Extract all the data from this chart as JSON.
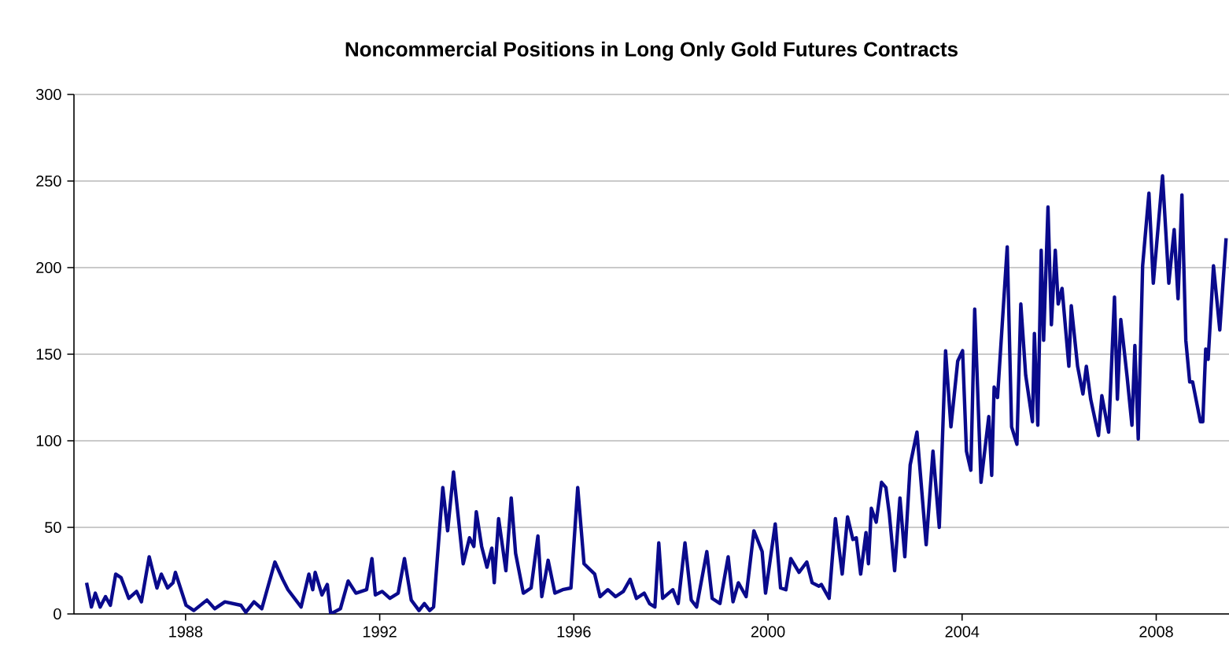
{
  "chart_data": {
    "type": "line",
    "title": "Noncommercial Positions in Long Only Gold Futures Contracts",
    "xlim": [
      1985.7,
      2009.5
    ],
    "xticks": [
      1988,
      1992,
      1996,
      2000,
      2004,
      2008
    ],
    "ylim": [
      0,
      300
    ],
    "yticks": [
      0,
      50,
      100,
      150,
      200,
      250,
      300
    ],
    "grid": "y",
    "marker": "none",
    "line_style": "solid",
    "series": [
      {
        "color": "#0a0a8c",
        "x": [
          1985.96,
          1986.06,
          1986.14,
          1986.24,
          1986.35,
          1986.45,
          1986.56,
          1986.67,
          1986.83,
          1986.99,
          1987.09,
          1987.25,
          1987.41,
          1987.5,
          1987.63,
          1987.74,
          1987.79,
          1988.01,
          1988.17,
          1988.44,
          1988.6,
          1988.81,
          1989.14,
          1989.24,
          1989.41,
          1989.57,
          1989.84,
          1990.0,
          1990.11,
          1990.38,
          1990.54,
          1990.62,
          1990.67,
          1990.81,
          1990.92,
          1990.99,
          1991.19,
          1991.35,
          1991.51,
          1991.73,
          1991.84,
          1991.91,
          1992.05,
          1992.21,
          1992.38,
          1992.51,
          1992.65,
          1992.81,
          1992.92,
          1993.03,
          1993.11,
          1993.3,
          1993.4,
          1993.52,
          1993.72,
          1993.85,
          1993.94,
          1993.99,
          1994.1,
          1994.21,
          1994.31,
          1994.36,
          1994.45,
          1994.6,
          1994.71,
          1994.8,
          1994.96,
          1995.12,
          1995.26,
          1995.34,
          1995.47,
          1995.61,
          1995.77,
          1995.94,
          1996.08,
          1996.21,
          1996.43,
          1996.54,
          1996.7,
          1996.86,
          1997.02,
          1997.16,
          1997.29,
          1997.45,
          1997.56,
          1997.67,
          1997.75,
          1997.83,
          1998.04,
          1998.15,
          1998.29,
          1998.42,
          1998.53,
          1998.74,
          1998.85,
          1999.01,
          1999.18,
          1999.28,
          1999.39,
          1999.55,
          1999.71,
          1999.88,
          1999.95,
          2000.15,
          2000.26,
          2000.37,
          2000.47,
          2000.64,
          2000.8,
          2000.91,
          2001.05,
          2001.1,
          2001.26,
          2001.39,
          2001.53,
          2001.64,
          2001.75,
          2001.82,
          2001.91,
          2002.02,
          2002.07,
          2002.13,
          2002.23,
          2002.34,
          2002.43,
          2002.5,
          2002.61,
          2002.72,
          2002.82,
          2002.93,
          2003.07,
          2003.26,
          2003.4,
          2003.53,
          2003.66,
          2003.77,
          2003.91,
          2004.01,
          2004.09,
          2004.18,
          2004.26,
          2004.39,
          2004.55,
          2004.61,
          2004.66,
          2004.73,
          2004.93,
          2005.02,
          2005.13,
          2005.21,
          2005.31,
          2005.45,
          2005.49,
          2005.56,
          2005.63,
          2005.68,
          2005.77,
          2005.84,
          2005.92,
          2005.98,
          2006.06,
          2006.2,
          2006.25,
          2006.38,
          2006.49,
          2006.56,
          2006.65,
          2006.81,
          2006.88,
          2007.02,
          2007.14,
          2007.2,
          2007.27,
          2007.4,
          2007.5,
          2007.56,
          2007.63,
          2007.72,
          2007.85,
          2007.94,
          2008.13,
          2008.26,
          2008.37,
          2008.45,
          2008.53,
          2008.61,
          2008.69,
          2008.75,
          2008.91,
          2008.96,
          2009.02,
          2009.07,
          2009.18,
          2009.31,
          2009.44
        ],
        "values": [
          18,
          4,
          12,
          4,
          10,
          5,
          23,
          21,
          9,
          13,
          7,
          33,
          15,
          23,
          15,
          18,
          24,
          5,
          2,
          8,
          3,
          7,
          5,
          1,
          7,
          3,
          30,
          20,
          14,
          4,
          23,
          14,
          24,
          11,
          17,
          0,
          3,
          19,
          12,
          14,
          32,
          11,
          13,
          9,
          12,
          32,
          8,
          2,
          6,
          2,
          4,
          73,
          48,
          82,
          29,
          44,
          39,
          59,
          39,
          27,
          38,
          18,
          55,
          25,
          67,
          35,
          12,
          15,
          45,
          10,
          31,
          12,
          14,
          15,
          73,
          29,
          23,
          10,
          14,
          10,
          13,
          20,
          9,
          12,
          6,
          4,
          41,
          9,
          14,
          6,
          41,
          8,
          4,
          36,
          9,
          6,
          33,
          7,
          18,
          10,
          48,
          36,
          12,
          52,
          15,
          14,
          32,
          24,
          30,
          18,
          16,
          17,
          9,
          55,
          23,
          56,
          43,
          44,
          23,
          47,
          29,
          61,
          53,
          76,
          73,
          58,
          25,
          67,
          33,
          86,
          105,
          40,
          94,
          50,
          152,
          108,
          146,
          152,
          94,
          83,
          176,
          76,
          114,
          80,
          131,
          125,
          212,
          108,
          98,
          179,
          138,
          111,
          162,
          109,
          210,
          158,
          235,
          167,
          210,
          179,
          188,
          143,
          178,
          143,
          127,
          143,
          124,
          103,
          126,
          105,
          183,
          124,
          170,
          137,
          109,
          155,
          101,
          201,
          243,
          191,
          253,
          191,
          222,
          182,
          242,
          158,
          134,
          134,
          111,
          111,
          153,
          147,
          201,
          164,
          217
        ]
      }
    ]
  }
}
